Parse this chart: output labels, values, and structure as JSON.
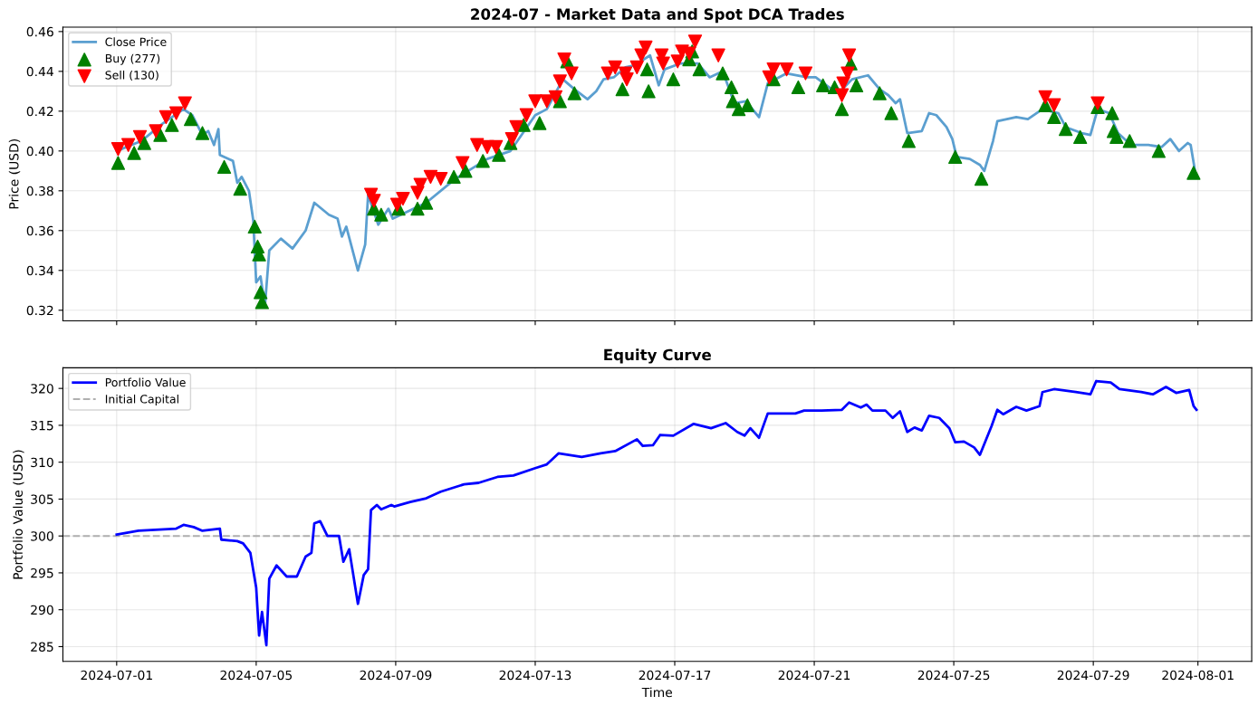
{
  "chart_data": [
    {
      "type": "line",
      "title": "2024-07 - Market Data and Spot DCA Trades",
      "ylabel": "Price (USD)",
      "tick_labels": "y",
      "grid": true,
      "legend": "top left",
      "xlim": [
        "2024-06-29T11:00",
        "2024-08-02T13:00"
      ],
      "xticks": [
        "2024-07-01",
        "2024-07-05",
        "2024-07-09",
        "2024-07-13",
        "2024-07-17",
        "2024-07-21",
        "2024-07-25",
        "2024-07-29",
        "2024-08-01"
      ],
      "ylim": [
        0.3147,
        0.4622
      ],
      "yticks": [
        0.32,
        0.34,
        0.36,
        0.38,
        {
          "value": 0.4,
          "label": "0.40"
        },
        0.42,
        0.44,
        0.46
      ],
      "series": [
        {
          "name": "Close Price",
          "color": "#5b9fd0",
          "marker": "none",
          "line_style": "solid",
          "x": [
            "2024-07-01T00:00",
            "2024-07-01T17:00",
            "2024-07-02T08:00",
            "2024-07-02T22:00",
            "2024-07-03T04:00",
            "2024-07-03T11:00",
            "2024-07-03T15:00",
            "2024-07-03T19:00",
            "2024-07-03T22:00",
            "2024-07-03T23:00",
            "2024-07-04T08:00",
            "2024-07-04T11:00",
            "2024-07-04T14:00",
            "2024-07-04T19:00",
            "2024-07-04T22:00",
            "2024-07-05T00:00",
            "2024-07-05T03:00",
            "2024-07-05T06:00",
            "2024-07-05T09:00",
            "2024-07-05T17:00",
            "2024-07-06T01:00",
            "2024-07-06T10:00",
            "2024-07-06T16:00",
            "2024-07-07T02:00",
            "2024-07-07T08:00",
            "2024-07-07T11:00",
            "2024-07-07T14:00",
            "2024-07-07T22:00",
            "2024-07-08T03:00",
            "2024-07-08T05:00",
            "2024-07-08T12:00",
            "2024-07-08T19:00",
            "2024-07-08T22:00",
            "2024-07-09T21:00",
            "2024-07-10T17:00",
            "2024-07-11T15:00",
            "2024-07-12T07:00",
            "2024-07-13T00:00",
            "2024-07-13T08:00",
            "2024-07-13T19:00",
            "2024-07-14T03:00",
            "2024-07-14T12:00",
            "2024-07-14T18:00",
            "2024-07-14T23:00",
            "2024-07-15T06:00",
            "2024-07-15T14:00",
            "2024-07-15T20:00",
            "2024-07-16T07:00",
            "2024-07-16T13:00",
            "2024-07-16T17:00",
            "2024-07-17T04:00",
            "2024-07-17T16:00",
            "2024-07-18T00:00",
            "2024-07-18T09:00",
            "2024-07-18T17:00",
            "2024-07-19T01:00",
            "2024-07-19T10:00",
            "2024-07-19T16:00",
            "2024-07-20T05:00",
            "2024-07-20T19:00",
            "2024-07-21T01:00",
            "2024-07-21T12:00",
            "2024-07-21T18:00",
            "2024-07-22T02:00",
            "2024-07-22T13:00",
            "2024-07-22T21:00",
            "2024-07-23T03:00",
            "2024-07-23T08:00",
            "2024-07-23T11:00",
            "2024-07-23T16:00",
            "2024-07-24T02:00",
            "2024-07-24T07:00",
            "2024-07-24T12:00",
            "2024-07-24T19:00",
            "2024-07-24T23:00",
            "2024-07-25T02:00",
            "2024-07-25T11:00",
            "2024-07-25T18:00",
            "2024-07-25T21:00",
            "2024-07-26T03:00",
            "2024-07-26T06:00",
            "2024-07-26T19:00",
            "2024-07-27T03:00",
            "2024-07-27T13:00",
            "2024-07-28T00:00",
            "2024-07-28T05:00",
            "2024-07-28T16:00",
            "2024-07-28T22:00",
            "2024-07-29T03:00",
            "2024-07-29T11:00",
            "2024-07-29T17:00",
            "2024-07-30T02:00",
            "2024-07-30T14:00",
            "2024-07-30T23:00",
            "2024-07-31T05:00",
            "2024-07-31T11:00",
            "2024-07-31T17:00",
            "2024-07-31T19:00",
            "2024-07-31T22:00"
          ],
          "values": [
            0.4,
            0.405,
            0.414,
            0.421,
            0.418,
            0.408,
            0.41,
            0.403,
            0.411,
            0.398,
            0.395,
            0.384,
            0.387,
            0.38,
            0.365,
            0.334,
            0.337,
            0.322,
            0.35,
            0.356,
            0.351,
            0.36,
            0.374,
            0.368,
            0.366,
            0.357,
            0.362,
            0.34,
            0.353,
            0.378,
            0.363,
            0.371,
            0.366,
            0.374,
            0.386,
            0.396,
            0.4,
            0.418,
            0.421,
            0.436,
            0.431,
            0.426,
            0.43,
            0.436,
            0.437,
            0.442,
            0.443,
            0.448,
            0.433,
            0.441,
            0.444,
            0.444,
            0.437,
            0.44,
            0.424,
            0.425,
            0.417,
            0.434,
            0.439,
            0.437,
            0.437,
            0.431,
            0.43,
            0.436,
            0.438,
            0.431,
            0.428,
            0.424,
            0.426,
            0.409,
            0.41,
            0.419,
            0.418,
            0.412,
            0.406,
            0.397,
            0.396,
            0.393,
            0.39,
            0.405,
            0.415,
            0.417,
            0.416,
            0.421,
            0.419,
            0.412,
            0.409,
            0.408,
            0.421,
            0.419,
            0.409,
            0.403,
            0.403,
            0.402,
            0.406,
            0.4,
            0.404,
            0.403,
            0.39
          ]
        },
        {
          "name": "Buy (277)",
          "type": "scatter",
          "color": "#008000",
          "marker": "triangle",
          "x": [
            "2024-07-01T01:00",
            "2024-07-01T12:00",
            "2024-07-01T19:00",
            "2024-07-02T06:00",
            "2024-07-02T14:00",
            "2024-07-03T03:00",
            "2024-07-03T11:00",
            "2024-07-04T02:00",
            "2024-07-04T13:00",
            "2024-07-04T23:00",
            "2024-07-05T01:00",
            "2024-07-05T02:00",
            "2024-07-05T03:00",
            "2024-07-05T04:00",
            "2024-07-08T09:00",
            "2024-07-08T14:00",
            "2024-07-09T02:00",
            "2024-07-09T15:00",
            "2024-07-09T21:00",
            "2024-07-10T16:00",
            "2024-07-11T00:00",
            "2024-07-11T12:00",
            "2024-07-11T23:00",
            "2024-07-12T07:00",
            "2024-07-12T16:00",
            "2024-07-13T03:00",
            "2024-07-13T17:00",
            "2024-07-13T22:00",
            "2024-07-14T03:00",
            "2024-07-15T12:00",
            "2024-07-16T06:00",
            "2024-07-16T05:00",
            "2024-07-16T23:00",
            "2024-07-17T10:00",
            "2024-07-17T12:00",
            "2024-07-17T17:00",
            "2024-07-18T09:00",
            "2024-07-18T15:00",
            "2024-07-18T16:00",
            "2024-07-18T20:00",
            "2024-07-19T02:00",
            "2024-07-19T20:00",
            "2024-07-20T13:00",
            "2024-07-21T06:00",
            "2024-07-21T14:00",
            "2024-07-21T19:00",
            "2024-07-22T01:00",
            "2024-07-22T05:00",
            "2024-07-22T21:00",
            "2024-07-23T05:00",
            "2024-07-23T17:00",
            "2024-07-25T01:00",
            "2024-07-25T19:00",
            "2024-07-27T15:00",
            "2024-07-27T21:00",
            "2024-07-28T05:00",
            "2024-07-28T15:00",
            "2024-07-29T03:00",
            "2024-07-29T13:00",
            "2024-07-29T14:00",
            "2024-07-29T16:00",
            "2024-07-30T01:00",
            "2024-07-30T21:00",
            "2024-07-31T21:00"
          ],
          "values": [
            0.394,
            0.399,
            0.404,
            0.408,
            0.413,
            0.416,
            0.409,
            0.392,
            0.381,
            0.362,
            0.352,
            0.348,
            0.329,
            0.324,
            0.371,
            0.368,
            0.371,
            0.371,
            0.374,
            0.387,
            0.39,
            0.395,
            0.398,
            0.404,
            0.413,
            0.414,
            0.425,
            0.445,
            0.429,
            0.431,
            0.43,
            0.441,
            0.436,
            0.446,
            0.45,
            0.441,
            0.439,
            0.432,
            0.425,
            0.421,
            0.423,
            0.436,
            0.432,
            0.433,
            0.432,
            0.421,
            0.444,
            0.433,
            0.429,
            0.419,
            0.405,
            0.397,
            0.386,
            0.423,
            0.417,
            0.411,
            0.407,
            0.422,
            0.419,
            0.41,
            0.407,
            0.405,
            0.4,
            0.389
          ]
        },
        {
          "name": "Sell (130)",
          "type": "scatter",
          "color": "#ff0000",
          "marker": "triangle_down",
          "x": [
            "2024-07-01T01:00",
            "2024-07-01T08:00",
            "2024-07-01T16:00",
            "2024-07-02T03:00",
            "2024-07-02T10:00",
            "2024-07-02T17:00",
            "2024-07-02T23:00",
            "2024-07-08T07:00",
            "2024-07-08T09:00",
            "2024-07-09T01:00",
            "2024-07-09T05:00",
            "2024-07-09T15:00",
            "2024-07-09T17:00",
            "2024-07-10T00:00",
            "2024-07-10T07:00",
            "2024-07-10T22:00",
            "2024-07-11T08:00",
            "2024-07-11T15:00",
            "2024-07-11T21:00",
            "2024-07-12T08:00",
            "2024-07-12T11:00",
            "2024-07-12T18:00",
            "2024-07-13T00:00",
            "2024-07-13T08:00",
            "2024-07-13T14:00",
            "2024-07-13T17:00",
            "2024-07-13T20:00",
            "2024-07-14T01:00",
            "2024-07-15T02:00",
            "2024-07-15T07:00",
            "2024-07-15T14:00",
            "2024-07-15T15:00",
            "2024-07-15T22:00",
            "2024-07-16T01:00",
            "2024-07-16T04:00",
            "2024-07-16T15:00",
            "2024-07-16T16:00",
            "2024-07-17T02:00",
            "2024-07-17T05:00",
            "2024-07-17T10:00",
            "2024-07-17T14:00",
            "2024-07-18T06:00",
            "2024-07-19T17:00",
            "2024-07-19T20:00",
            "2024-07-20T05:00",
            "2024-07-20T18:00",
            "2024-07-21T19:00",
            "2024-07-21T20:00",
            "2024-07-21T23:00",
            "2024-07-22T00:00",
            "2024-07-27T15:00",
            "2024-07-27T21:00",
            "2024-07-29T03:00"
          ],
          "values": [
            0.401,
            0.403,
            0.407,
            0.41,
            0.417,
            0.419,
            0.424,
            0.378,
            0.375,
            0.373,
            0.376,
            0.379,
            0.383,
            0.387,
            0.386,
            0.394,
            0.403,
            0.402,
            0.402,
            0.406,
            0.412,
            0.418,
            0.425,
            0.425,
            0.427,
            0.435,
            0.446,
            0.439,
            0.439,
            0.442,
            0.439,
            0.436,
            0.442,
            0.448,
            0.452,
            0.448,
            0.444,
            0.445,
            0.45,
            0.449,
            0.455,
            0.448,
            0.437,
            0.441,
            0.441,
            0.439,
            0.428,
            0.434,
            0.439,
            0.448,
            0.427,
            0.423,
            0.424
          ]
        }
      ]
    },
    {
      "type": "line",
      "title": "Equity Curve",
      "xlabel": "Time",
      "ylabel": "Portfolio Value (USD)",
      "grid": true,
      "legend": "top left",
      "xlim": [
        "2024-06-29T11:00",
        "2024-08-02T13:00"
      ],
      "xticks": [
        "2024-07-01",
        "2024-07-05",
        "2024-07-09",
        "2024-07-13",
        "2024-07-17",
        "2024-07-21",
        "2024-07-25",
        "2024-07-29",
        "2024-08-01"
      ],
      "ylim": [
        283,
        322.8
      ],
      "yticks": [
        285,
        290,
        295,
        300,
        305,
        310,
        315,
        320
      ],
      "ref_lines": [
        {
          "axis": "y",
          "value": 300,
          "label": "Initial Capital",
          "color": "#b0b0b0",
          "line_style": "dashed"
        }
      ],
      "series": [
        {
          "name": "Portfolio Value",
          "color": "#0000ff",
          "marker": "none",
          "line_style": "solid",
          "x": [
            "2024-07-01T00:00",
            "2024-07-01T15:00",
            "2024-07-02T17:00",
            "2024-07-02T22:00",
            "2024-07-03T05:00",
            "2024-07-03T11:00",
            "2024-07-03T23:00",
            "2024-07-04T00:00",
            "2024-07-04T11:00",
            "2024-07-04T15:00",
            "2024-07-04T20:00",
            "2024-07-05T00:00",
            "2024-07-05T02:00",
            "2024-07-05T04:00",
            "2024-07-05T07:00",
            "2024-07-05T09:00",
            "2024-07-05T14:00",
            "2024-07-05T21:00",
            "2024-07-06T04:00",
            "2024-07-06T10:00",
            "2024-07-06T14:00",
            "2024-07-06T16:00",
            "2024-07-06T20:00",
            "2024-07-07T01:00",
            "2024-07-07T09:00",
            "2024-07-07T12:00",
            "2024-07-07T16:00",
            "2024-07-07T22:00",
            "2024-07-08T02:00",
            "2024-07-08T05:00",
            "2024-07-08T07:00",
            "2024-07-08T11:00",
            "2024-07-08T14:00",
            "2024-07-08T21:00",
            "2024-07-08T23:00",
            "2024-07-09T10:00",
            "2024-07-09T21:00",
            "2024-07-10T07:00",
            "2024-07-10T23:00",
            "2024-07-11T09:00",
            "2024-07-11T22:00",
            "2024-07-12T09:00",
            "2024-07-13T00:00",
            "2024-07-13T08:00",
            "2024-07-13T16:00",
            "2024-07-14T08:00",
            "2024-07-14T21:00",
            "2024-07-15T07:00",
            "2024-07-15T22:00",
            "2024-07-16T02:00",
            "2024-07-16T09:00",
            "2024-07-16T14:00",
            "2024-07-16T23:00",
            "2024-07-17T13:00",
            "2024-07-18T01:00",
            "2024-07-18T11:00",
            "2024-07-18T19:00",
            "2024-07-19T00:00",
            "2024-07-19T04:00",
            "2024-07-19T10:00",
            "2024-07-19T16:00",
            "2024-07-20T11:00",
            "2024-07-20T17:00",
            "2024-07-21T05:00",
            "2024-07-21T19:00",
            "2024-07-22T00:00",
            "2024-07-22T08:00",
            "2024-07-22T12:00",
            "2024-07-22T16:00",
            "2024-07-23T01:00",
            "2024-07-23T06:00",
            "2024-07-23T11:00",
            "2024-07-23T16:00",
            "2024-07-23T21:00",
            "2024-07-24T02:00",
            "2024-07-24T07:00",
            "2024-07-24T14:00",
            "2024-07-24T21:00",
            "2024-07-25T01:00",
            "2024-07-25T07:00",
            "2024-07-25T14:00",
            "2024-07-25T18:00",
            "2024-07-26T02:00",
            "2024-07-26T06:00",
            "2024-07-26T10:00",
            "2024-07-26T19:00",
            "2024-07-27T02:00",
            "2024-07-27T11:00",
            "2024-07-27T13:00",
            "2024-07-27T21:00",
            "2024-07-28T12:00",
            "2024-07-28T22:00",
            "2024-07-29T02:00",
            "2024-07-29T12:00",
            "2024-07-29T18:00",
            "2024-07-30T09:00",
            "2024-07-30T17:00",
            "2024-07-31T02:00",
            "2024-07-31T09:00",
            "2024-07-31T18:00",
            "2024-07-31T21:00",
            "2024-07-31T23:00"
          ],
          "values": [
            300.2,
            300.7,
            301.0,
            301.5,
            301.2,
            300.7,
            301.0,
            299.5,
            299.3,
            299.0,
            297.7,
            293.0,
            286.5,
            289.7,
            285.2,
            294.2,
            296.0,
            294.5,
            294.5,
            297.2,
            297.7,
            301.7,
            302.0,
            300.0,
            300.0,
            296.5,
            298.2,
            290.8,
            294.7,
            295.5,
            303.5,
            304.2,
            303.6,
            304.2,
            304.0,
            304.6,
            305.1,
            306.0,
            307.0,
            307.2,
            308.0,
            308.2,
            309.2,
            309.7,
            311.2,
            310.7,
            311.2,
            311.5,
            313.1,
            312.2,
            312.3,
            313.7,
            313.6,
            315.2,
            314.6,
            315.3,
            314.1,
            313.6,
            314.6,
            313.3,
            316.6,
            316.6,
            317.0,
            317.0,
            317.1,
            318.1,
            317.4,
            317.8,
            317.0,
            317.0,
            316.0,
            316.9,
            314.1,
            314.7,
            314.3,
            316.3,
            316.0,
            314.6,
            312.7,
            312.8,
            312.0,
            311.0,
            314.9,
            317.1,
            316.5,
            317.5,
            317.0,
            317.6,
            319.5,
            319.9,
            319.5,
            319.2,
            321.0,
            320.8,
            319.9,
            319.5,
            319.2,
            320.2,
            319.4,
            319.8,
            317.6,
            317.1
          ]
        }
      ]
    }
  ]
}
